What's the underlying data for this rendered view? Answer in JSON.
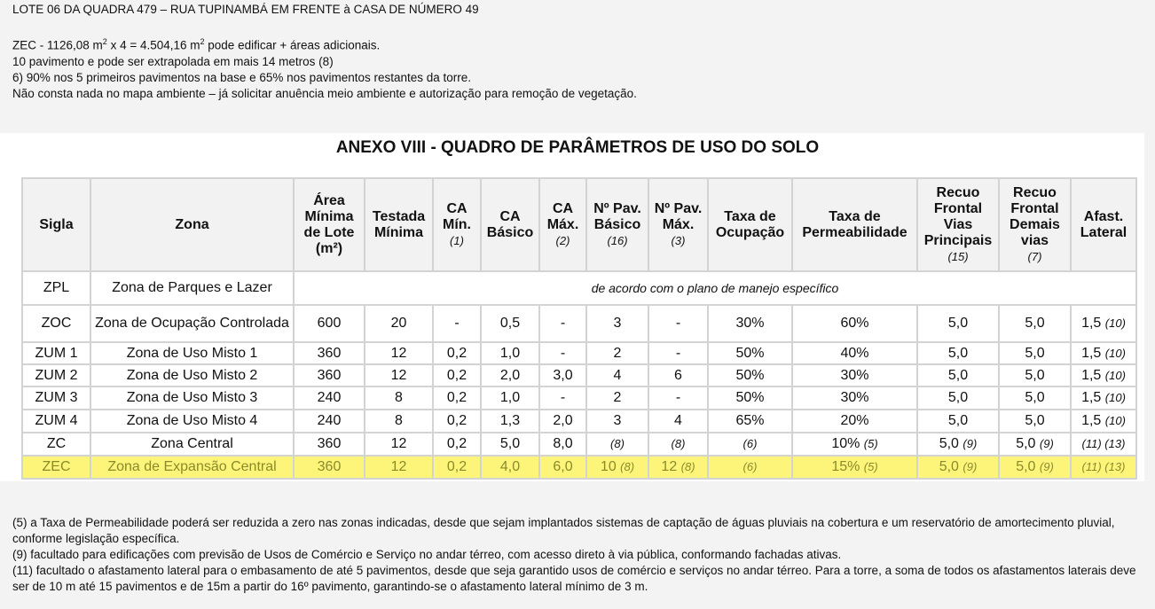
{
  "notes": {
    "line1": "LOTE 06 DA QUADRA  479 – RUA TUPINAMBÁ EM FRENTE à CASA DE NÚMERO 49",
    "line2a": "ZEC  -  1126,08 m",
    "line2sup1": "2",
    "line2b": " x 4 = 4.504,16 m",
    "line2sup2": "2",
    "line2c": " pode edificar + áreas adicionais.",
    "line3": "10 pavimento e pode ser extrapolada em mais 14 metros (8)",
    "line4": "6) 90% nos 5 primeiros pavimentos na base e 65% nos pavimentos restantes da torre.",
    "line5": "Não consta nada no mapa ambiente – já solicitar anuência meio ambiente e  autorização para remoção de vegetação."
  },
  "table_title": "ANEXO VIII - QUADRO DE PARÂMETROS DE USO DO SOLO",
  "headers": [
    {
      "t": "Sigla"
    },
    {
      "t": "Zona"
    },
    {
      "t": "Área Mínima de Lote (m²)"
    },
    {
      "t": "Testada Mínima"
    },
    {
      "t": "CA Mín.",
      "n": "(1)"
    },
    {
      "t": "CA Básico"
    },
    {
      "t": "CA Máx.",
      "n": "(2)"
    },
    {
      "t": "Nº Pav. Básico",
      "n": "(16)"
    },
    {
      "t": "Nº Pav. Máx.",
      "n": "(3)"
    },
    {
      "t": "Taxa de Ocupação"
    },
    {
      "t": "Taxa de Permeabilidade"
    },
    {
      "t": "Recuo Frontal Vias Principais",
      "n": "(15)"
    },
    {
      "t": "Recuo Frontal Demais vias",
      "n": "(7)"
    },
    {
      "t": "Afast. Lateral"
    }
  ],
  "rows": [
    {
      "sigla": "ZPL",
      "zona": "Zona de Parques e Lazer",
      "span_text": "de acordo com o plano de manejo específico"
    },
    {
      "sigla": "ZOC",
      "zona": "Zona de Ocupação Controlada",
      "cells": [
        {
          "v": "600"
        },
        {
          "v": "20"
        },
        {
          "v": "-"
        },
        {
          "v": "0,5"
        },
        {
          "v": "-"
        },
        {
          "v": "3"
        },
        {
          "v": "-"
        },
        {
          "v": "30%"
        },
        {
          "v": "60%"
        },
        {
          "v": "5,0"
        },
        {
          "v": "5,0"
        },
        {
          "v": "1,5",
          "n": "(10)"
        }
      ]
    },
    {
      "sigla": "ZUM 1",
      "zona": "Zona de Uso Misto 1",
      "cells": [
        {
          "v": "360"
        },
        {
          "v": "12"
        },
        {
          "v": "0,2"
        },
        {
          "v": "1,0"
        },
        {
          "v": "-"
        },
        {
          "v": "2"
        },
        {
          "v": "-"
        },
        {
          "v": "50%"
        },
        {
          "v": "40%"
        },
        {
          "v": "5,0"
        },
        {
          "v": "5,0"
        },
        {
          "v": "1,5",
          "n": "(10)"
        }
      ]
    },
    {
      "sigla": "ZUM 2",
      "zona": "Zona de Uso Misto 2",
      "cells": [
        {
          "v": "360"
        },
        {
          "v": "12"
        },
        {
          "v": "0,2"
        },
        {
          "v": "2,0"
        },
        {
          "v": "3,0"
        },
        {
          "v": "4"
        },
        {
          "v": "6"
        },
        {
          "v": "50%"
        },
        {
          "v": "30%"
        },
        {
          "v": "5,0"
        },
        {
          "v": "5,0"
        },
        {
          "v": "1,5",
          "n": "(10)"
        }
      ]
    },
    {
      "sigla": "ZUM 3",
      "zona": "Zona de Uso Misto 3",
      "cells": [
        {
          "v": "240"
        },
        {
          "v": "8"
        },
        {
          "v": "0,2"
        },
        {
          "v": "1,0"
        },
        {
          "v": "-"
        },
        {
          "v": "2"
        },
        {
          "v": "-"
        },
        {
          "v": "50%"
        },
        {
          "v": "30%"
        },
        {
          "v": "5,0"
        },
        {
          "v": "5,0"
        },
        {
          "v": "1,5",
          "n": "(10)"
        }
      ]
    },
    {
      "sigla": "ZUM 4",
      "zona": "Zona de Uso Misto 4",
      "cells": [
        {
          "v": "240"
        },
        {
          "v": "8"
        },
        {
          "v": "0,2"
        },
        {
          "v": "1,3"
        },
        {
          "v": "2,0"
        },
        {
          "v": "3"
        },
        {
          "v": "4"
        },
        {
          "v": "65%"
        },
        {
          "v": "20%"
        },
        {
          "v": "5,0"
        },
        {
          "v": "5,0"
        },
        {
          "v": "1,5",
          "n": "(10)"
        }
      ]
    },
    {
      "sigla": "ZC",
      "zona": "Zona Central",
      "cells": [
        {
          "v": "360"
        },
        {
          "v": "12"
        },
        {
          "v": "0,2"
        },
        {
          "v": "5,0"
        },
        {
          "v": "8,0"
        },
        {
          "n": "(8)"
        },
        {
          "n": "(8)"
        },
        {
          "n": "(6)"
        },
        {
          "v": "10%",
          "n": "(5)"
        },
        {
          "v": "5,0",
          "n": "(9)"
        },
        {
          "v": "5,0",
          "n": "(9)"
        },
        {
          "n": "(11) (13)"
        }
      ]
    },
    {
      "sigla": "ZEC",
      "zona": "Zona de Expansão Central",
      "highlight": true,
      "highlight_color": "#fdf57a",
      "cells": [
        {
          "v": "360"
        },
        {
          "v": "12"
        },
        {
          "v": "0,2"
        },
        {
          "v": "4,0"
        },
        {
          "v": "6,0"
        },
        {
          "v": "10",
          "n": "(8)"
        },
        {
          "v": "12",
          "n": "(8)"
        },
        {
          "n": "(6)"
        },
        {
          "v": "15%",
          "n": "(5)"
        },
        {
          "v": "5,0",
          "n": "(9)"
        },
        {
          "v": "5,0",
          "n": "(9)"
        },
        {
          "n": "(11) (13)"
        }
      ]
    }
  ],
  "footnotes": [
    "(5) a Taxa de Permeabilidade poderá ser reduzida a zero nas zonas indicadas, desde que sejam implantados sistemas de captação de águas pluviais na cobertura e um reservatório de amortecimento pluvial, conforme legislação específica.",
    "(9) facultado para edificações com previsão de Usos de Comércio e Serviço no andar térreo, com acesso direto à via pública, conformando fachadas ativas.",
    "(11) facultado o afastamento lateral para o embasamento de até 5 pavimentos, desde que seja garantido usos de comércio e serviços no andar térreo. Para a torre, a soma de todos os afastamentos laterais deve ser de 10 m até 15 pavimentos e de 15m a partir do 16º pavimento, garantindo-se o afastamento lateral mínimo de 3 m."
  ]
}
